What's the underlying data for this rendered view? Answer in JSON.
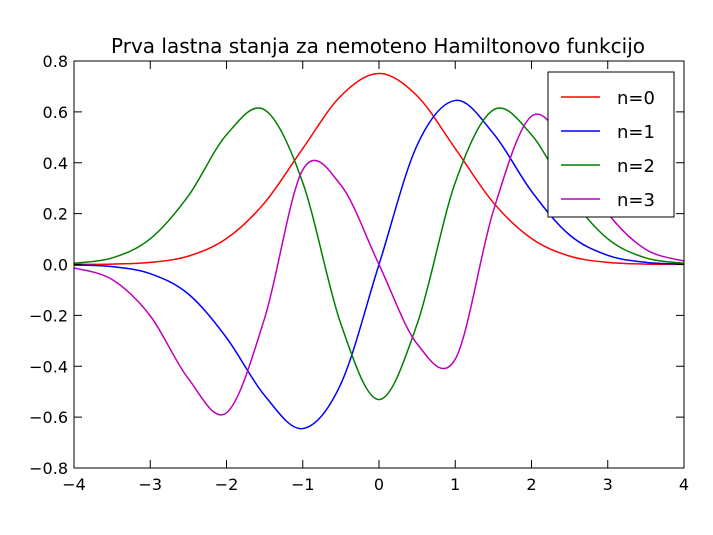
{
  "chart_data": {
    "type": "line",
    "title": "Prva lastna stanja za nemoteno Hamiltonovo funkcijo",
    "xlabel": "",
    "ylabel": "",
    "xlim": [
      -4,
      4
    ],
    "ylim": [
      -0.8,
      0.8
    ],
    "xticks": [
      -4,
      -3,
      -2,
      -1,
      0,
      1,
      2,
      3,
      4
    ],
    "xtick_labels": [
      "−4",
      "−3",
      "−2",
      "−1",
      "0",
      "1",
      "2",
      "3",
      "4"
    ],
    "yticks": [
      -0.8,
      -0.6,
      -0.4,
      -0.2,
      0.0,
      0.2,
      0.4,
      0.6,
      0.8
    ],
    "ytick_labels": [
      "−0.8",
      "−0.6",
      "−0.4",
      "−0.2",
      "0.0",
      "0.2",
      "0.4",
      "0.6",
      "0.8"
    ],
    "grid": false,
    "legend_position": "top-right",
    "x": [
      -4.0,
      -3.5,
      -3.0,
      -2.5,
      -2.0,
      -1.5,
      -1.0,
      -0.5,
      0.0,
      0.5,
      1.0,
      1.5,
      2.0,
      2.5,
      3.0,
      3.5,
      4.0
    ],
    "series": [
      {
        "name": "n=0",
        "color": "#ff0000",
        "values": [
          0.0003,
          0.0017,
          0.0084,
          0.033,
          0.102,
          0.243,
          0.456,
          0.663,
          0.751,
          0.663,
          0.456,
          0.243,
          0.102,
          0.033,
          0.0084,
          0.0017,
          0.0003
        ]
      },
      {
        "name": "n=1",
        "color": "#0000ff",
        "values": [
          -0.0019,
          -0.0085,
          -0.036,
          -0.116,
          -0.288,
          -0.515,
          -0.645,
          -0.469,
          0.0,
          0.469,
          0.645,
          0.515,
          0.288,
          0.116,
          0.036,
          0.0085,
          0.0019
        ]
      },
      {
        "name": "n=2",
        "color": "#007f00",
        "values": [
          0.005,
          0.0257,
          0.101,
          0.27,
          0.51,
          0.608,
          0.322,
          -0.234,
          -0.531,
          -0.234,
          0.322,
          0.608,
          0.51,
          0.27,
          0.101,
          0.0257,
          0.005
        ]
      },
      {
        "name": "n=3",
        "color": "#bf00bf",
        "values": [
          -0.0136,
          -0.059,
          -0.202,
          -0.449,
          -0.583,
          -0.211,
          0.372,
          0.312,
          0.0,
          -0.312,
          -0.372,
          0.211,
          0.583,
          0.449,
          0.202,
          0.059,
          0.0136
        ]
      }
    ]
  }
}
